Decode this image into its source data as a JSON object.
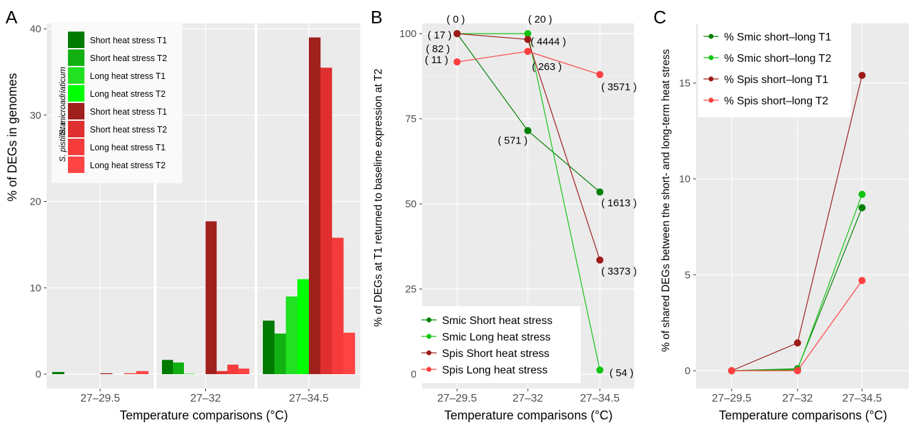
{
  "chart_data": [
    {
      "panel": "A",
      "type": "bar",
      "xlabel": "Temperature comparisons (°C)",
      "ylabel": "% of DEGs in genomes",
      "ylim": [
        0,
        40
      ],
      "yticks": [
        0,
        10,
        20,
        30,
        40
      ],
      "facets": [
        "27–29.5",
        "27–32",
        "27–34.5"
      ],
      "legend_group_labels": [
        "S. microadriaticum",
        "S. pistillata"
      ],
      "series": [
        {
          "name": "Short heat stress T1",
          "color": "#007A00",
          "values": [
            0.25,
            1.65,
            6.2
          ]
        },
        {
          "name": "Short heat stress T2",
          "color": "#12B012",
          "values": [
            0.0,
            1.35,
            4.7
          ]
        },
        {
          "name": "Long heat stress T1",
          "color": "#22E022",
          "values": [
            0.0,
            0.05,
            9.0
          ]
        },
        {
          "name": "Long heat stress T2",
          "color": "#00FF00",
          "values": [
            0.0,
            0.0,
            11.0
          ]
        },
        {
          "name": "Short heat stress  T1",
          "color": "#A0201E",
          "values": [
            0.1,
            17.7,
            39.0
          ]
        },
        {
          "name": "Short heat stress T2",
          "color": "#E02F2F",
          "values": [
            0.0,
            0.35,
            35.5
          ]
        },
        {
          "name": "Long heat stress T1",
          "color": "#F53B3B",
          "values": [
            0.1,
            1.1,
            15.8
          ]
        },
        {
          "name": "Long heat stress T2",
          "color": "#FF4444",
          "values": [
            0.35,
            0.65,
            4.8
          ]
        }
      ],
      "legend_placement": "top-left"
    },
    {
      "panel": "B",
      "type": "line",
      "xlabel": "Temperature comparisons (°C)",
      "ylabel": "% of DEGs at T1 returned to baseline expression at T2",
      "categories": [
        "27–29.5",
        "27–32",
        "27–34.5"
      ],
      "ylim": [
        -3,
        105
      ],
      "yticks": [
        0,
        25,
        50,
        75,
        100
      ],
      "series": [
        {
          "name": "Smic Short heat stress",
          "color": "#008000",
          "values": [
            100,
            71.5,
            53.5
          ]
        },
        {
          "name": "Smic Long heat stress",
          "color": "#11C411",
          "values": [
            100,
            100,
            1.2
          ]
        },
        {
          "name": "Spis Short heat stress",
          "color": "#9E1B1B",
          "values": [
            100,
            98.3,
            33.5
          ]
        },
        {
          "name": "Spis Long heat stress",
          "color": "#FF4040",
          "values": [
            91.7,
            94.8,
            88.0
          ]
        }
      ],
      "annotations": [
        {
          "text": "( 0 )",
          "x": "27–29.5",
          "y": 100
        },
        {
          "text": "( 17 )",
          "x": "27–29.5",
          "y": 100
        },
        {
          "text": "( 82 )",
          "x": "27–29.5",
          "y": 100
        },
        {
          "text": "( 11 )",
          "x": "27–29.5",
          "y": 91.7
        },
        {
          "text": "( 20 )",
          "x": "27–32",
          "y": 100
        },
        {
          "text": "( 4444 )",
          "x": "27–32",
          "y": 98.3
        },
        {
          "text": "( 263 )",
          "x": "27–32",
          "y": 94.8
        },
        {
          "text": "( 571 )",
          "x": "27–32",
          "y": 71.5
        },
        {
          "text": "( 3571 )",
          "x": "27–34.5",
          "y": 88.0
        },
        {
          "text": "( 1613 )",
          "x": "27–34.5",
          "y": 53.5
        },
        {
          "text": "( 3373 )",
          "x": "27–34.5",
          "y": 33.5
        },
        {
          "text": "( 54 )",
          "x": "27–34.5",
          "y": 1.2
        }
      ],
      "legend_placement": "bottom-left"
    },
    {
      "panel": "C",
      "type": "line",
      "xlabel": "Temperature comparisons (°C)",
      "ylabel": "% of shared DEGs between the short- and long-term heat stress",
      "categories": [
        "27–29.5",
        "27–32",
        "27–34.5"
      ],
      "ylim": [
        -0.8,
        18.2
      ],
      "yticks": [
        0,
        5,
        10,
        15
      ],
      "series": [
        {
          "name": "% Smic short–long T1",
          "color": "#008000",
          "values": [
            0,
            0.1,
            8.5
          ]
        },
        {
          "name": "% Smic short–long T2",
          "color": "#11C411",
          "values": [
            0,
            0.05,
            9.2
          ]
        },
        {
          "name": "% Spis short–long T1",
          "color": "#9E1B1B",
          "values": [
            0,
            1.45,
            15.4
          ]
        },
        {
          "name": "% Spis short–long T2",
          "color": "#FF4040",
          "values": [
            0,
            0,
            4.7
          ]
        }
      ],
      "legend_placement": "top-left"
    }
  ]
}
